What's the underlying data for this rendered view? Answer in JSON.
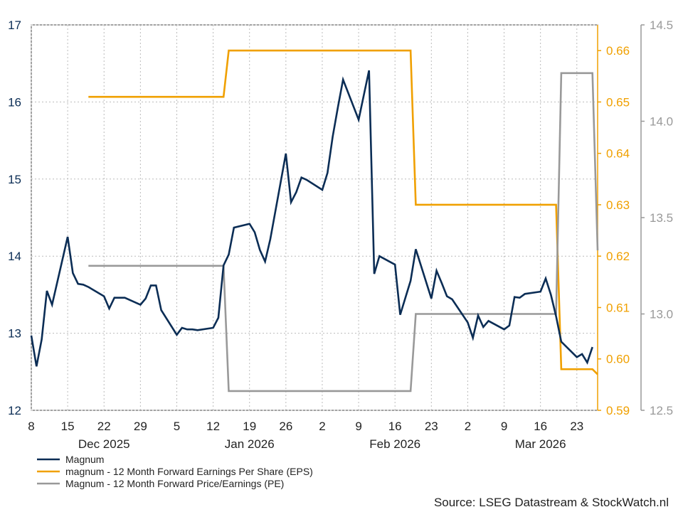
{
  "chart_data": {
    "type": "line",
    "source": "Source: LSEG Datastream & StockWatch.nl",
    "x_dates": [
      "2025-12-08",
      "2025-12-09",
      "2025-12-10",
      "2025-12-11",
      "2025-12-12",
      "2025-12-15",
      "2025-12-16",
      "2025-12-17",
      "2025-12-18",
      "2025-12-19",
      "2025-12-22",
      "2025-12-23",
      "2025-12-24",
      "2025-12-25",
      "2025-12-26",
      "2025-12-29",
      "2025-12-30",
      "2025-12-31",
      "2026-01-01",
      "2026-01-02",
      "2026-01-05",
      "2026-01-06",
      "2026-01-07",
      "2026-01-08",
      "2026-01-09",
      "2026-01-12",
      "2026-01-13",
      "2026-01-14",
      "2026-01-15",
      "2026-01-16",
      "2026-01-19",
      "2026-01-20",
      "2026-01-21",
      "2026-01-22",
      "2026-01-23",
      "2026-01-26",
      "2026-01-27",
      "2026-01-28",
      "2026-01-29",
      "2026-01-30",
      "2026-02-02",
      "2026-02-03",
      "2026-02-04",
      "2026-02-05",
      "2026-02-06",
      "2026-02-09",
      "2026-02-10",
      "2026-02-11",
      "2026-02-12",
      "2026-02-13",
      "2026-02-16",
      "2026-02-17",
      "2026-02-18",
      "2026-02-19",
      "2026-02-20",
      "2026-02-23",
      "2026-02-24",
      "2026-02-25",
      "2026-02-26",
      "2026-02-27",
      "2026-03-02",
      "2026-03-03",
      "2026-03-04",
      "2026-03-05",
      "2026-03-06",
      "2026-03-09",
      "2026-03-10",
      "2026-03-11",
      "2026-03-12",
      "2026-03-13",
      "2026-03-16",
      "2026-03-17",
      "2026-03-18",
      "2026-03-19",
      "2026-03-20",
      "2026-03-23",
      "2026-03-24",
      "2026-03-25",
      "2026-03-26",
      "2026-03-27"
    ],
    "series": [
      {
        "name": "Magnum",
        "color": "#0b2d55",
        "axis": "left",
        "values": [
          12.97,
          12.57,
          12.92,
          13.55,
          13.37,
          14.25,
          13.78,
          13.64,
          13.63,
          13.6,
          13.48,
          13.32,
          13.46,
          13.46,
          13.46,
          13.37,
          13.45,
          13.62,
          13.62,
          13.3,
          12.98,
          13.07,
          13.05,
          13.05,
          13.04,
          13.07,
          13.2,
          13.88,
          14.02,
          14.37,
          14.42,
          14.31,
          14.08,
          13.93,
          14.22,
          15.33,
          14.7,
          14.83,
          15.02,
          14.99,
          14.86,
          15.08,
          15.55,
          15.93,
          16.29,
          15.77,
          16.09,
          16.41,
          13.77,
          14.0,
          13.89,
          13.24,
          13.46,
          13.68,
          14.09,
          13.45,
          13.81,
          13.65,
          13.48,
          13.44,
          13.14,
          12.94,
          13.23,
          13.08,
          13.16,
          13.05,
          13.1,
          13.47,
          13.46,
          13.51,
          13.54,
          13.71,
          13.5,
          13.22,
          12.89,
          12.69,
          12.73,
          12.62,
          12.82,
          null
        ]
      },
      {
        "name": "magnum - 12 Month Forward Earnings Per Share (EPS)",
        "color": "#f0a000",
        "axis": "right1",
        "values": [
          null,
          null,
          null,
          null,
          null,
          null,
          null,
          null,
          null,
          0.651,
          0.651,
          0.651,
          0.651,
          0.651,
          0.651,
          0.651,
          0.651,
          0.651,
          0.651,
          0.651,
          0.651,
          0.651,
          0.651,
          0.651,
          0.651,
          0.651,
          0.651,
          0.651,
          0.66,
          0.66,
          0.66,
          0.66,
          0.66,
          0.66,
          0.66,
          0.66,
          0.66,
          0.66,
          0.66,
          0.66,
          0.66,
          0.66,
          0.66,
          0.66,
          0.66,
          0.66,
          0.66,
          0.66,
          0.66,
          0.66,
          0.66,
          0.66,
          0.66,
          0.66,
          0.63,
          0.63,
          0.63,
          0.63,
          0.63,
          0.63,
          0.63,
          0.63,
          0.63,
          0.63,
          0.63,
          0.63,
          0.63,
          0.63,
          0.63,
          0.63,
          0.63,
          0.63,
          0.63,
          0.63,
          0.598,
          0.598,
          0.598,
          0.598,
          0.598,
          0.597
        ]
      },
      {
        "name": "Magnum - 12 Month Forward Price/Earnings (PE)",
        "color": "#999999",
        "axis": "right2",
        "values": [
          null,
          null,
          null,
          null,
          null,
          null,
          null,
          null,
          null,
          13.25,
          13.25,
          13.25,
          13.25,
          13.25,
          13.25,
          13.25,
          13.25,
          13.25,
          13.25,
          13.25,
          13.25,
          13.25,
          13.25,
          13.25,
          13.25,
          13.25,
          13.25,
          13.25,
          12.6,
          12.6,
          12.6,
          12.6,
          12.6,
          12.6,
          12.6,
          12.6,
          12.6,
          12.6,
          12.6,
          12.6,
          12.6,
          12.6,
          12.6,
          12.6,
          12.6,
          12.6,
          12.6,
          12.6,
          12.6,
          12.6,
          12.6,
          12.6,
          12.6,
          12.6,
          13.0,
          13.0,
          13.0,
          13.0,
          13.0,
          13.0,
          13.0,
          13.0,
          13.0,
          13.0,
          13.0,
          13.0,
          13.0,
          13.0,
          13.0,
          13.0,
          13.0,
          13.0,
          13.0,
          13.0,
          14.25,
          14.25,
          14.25,
          14.25,
          14.25,
          13.33
        ]
      }
    ],
    "axes": {
      "left": {
        "min": 12,
        "max": 17,
        "ticks": [
          "12",
          "13",
          "14",
          "15",
          "16",
          "17"
        ],
        "color": "#0b2d55"
      },
      "right1": {
        "min": 0.59,
        "max": 0.665,
        "ticks": [
          "0.59",
          "0.60",
          "0.61",
          "0.62",
          "0.63",
          "0.64",
          "0.65",
          "0.66"
        ],
        "color": "#f0a000"
      },
      "right2": {
        "min": 12.5,
        "max": 14.5,
        "ticks": [
          "12.5",
          "13.0",
          "13.5",
          "14.0",
          "14.5"
        ],
        "color": "#999999"
      }
    },
    "x_ticks": [
      {
        "date": "2025-12-08",
        "label": "8"
      },
      {
        "date": "2025-12-15",
        "label": "15"
      },
      {
        "date": "2025-12-22",
        "label": "22"
      },
      {
        "date": "2025-12-29",
        "label": "29"
      },
      {
        "date": "2026-01-05",
        "label": "5"
      },
      {
        "date": "2026-01-12",
        "label": "12"
      },
      {
        "date": "2026-01-19",
        "label": "19"
      },
      {
        "date": "2026-01-26",
        "label": "26"
      },
      {
        "date": "2026-02-02",
        "label": "2"
      },
      {
        "date": "2026-02-09",
        "label": "9"
      },
      {
        "date": "2026-02-16",
        "label": "16"
      },
      {
        "date": "2026-02-23",
        "label": "23"
      },
      {
        "date": "2026-03-02",
        "label": "2"
      },
      {
        "date": "2026-03-09",
        "label": "9"
      },
      {
        "date": "2026-03-16",
        "label": "16"
      },
      {
        "date": "2026-03-23",
        "label": "23"
      }
    ],
    "month_labels": [
      {
        "date": "2025-12-22",
        "label": "Dec 2025"
      },
      {
        "date": "2026-01-19",
        "label": "Jan 2026"
      },
      {
        "date": "2026-02-16",
        "label": "Feb 2026"
      },
      {
        "date": "2026-03-16",
        "label": "Mar 2026"
      }
    ],
    "grid": true,
    "legend_position": "bottom-left"
  }
}
